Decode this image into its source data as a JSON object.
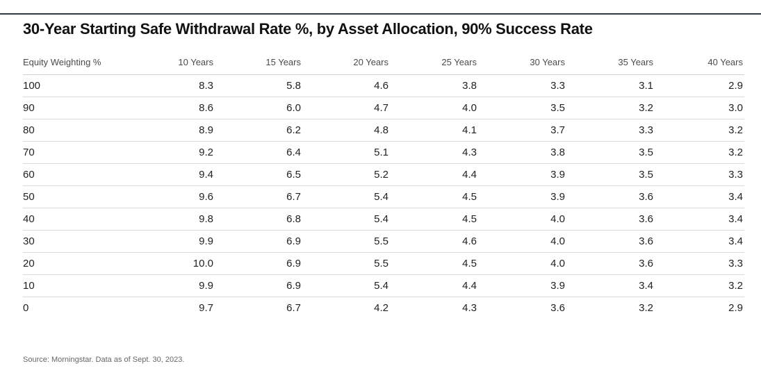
{
  "chart_data": {
    "type": "table",
    "title": "30-Year Starting Safe Withdrawal Rate %, by Asset Allocation, 90% Success Rate",
    "row_header": "Equity Weighting %",
    "columns": [
      "10 Years",
      "15 Years",
      "20 Years",
      "25 Years",
      "30 Years",
      "35 Years",
      "40 Years"
    ],
    "rows": [
      {
        "equity": "100",
        "values": [
          "8.3",
          "5.8",
          "4.6",
          "3.8",
          "3.3",
          "3.1",
          "2.9"
        ]
      },
      {
        "equity": "90",
        "values": [
          "8.6",
          "6.0",
          "4.7",
          "4.0",
          "3.5",
          "3.2",
          "3.0"
        ]
      },
      {
        "equity": "80",
        "values": [
          "8.9",
          "6.2",
          "4.8",
          "4.1",
          "3.7",
          "3.3",
          "3.2"
        ]
      },
      {
        "equity": "70",
        "values": [
          "9.2",
          "6.4",
          "5.1",
          "4.3",
          "3.8",
          "3.5",
          "3.2"
        ]
      },
      {
        "equity": "60",
        "values": [
          "9.4",
          "6.5",
          "5.2",
          "4.4",
          "3.9",
          "3.5",
          "3.3"
        ]
      },
      {
        "equity": "50",
        "values": [
          "9.6",
          "6.7",
          "5.4",
          "4.5",
          "3.9",
          "3.6",
          "3.4"
        ]
      },
      {
        "equity": "40",
        "values": [
          "9.8",
          "6.8",
          "5.4",
          "4.5",
          "4.0",
          "3.6",
          "3.4"
        ]
      },
      {
        "equity": "30",
        "values": [
          "9.9",
          "6.9",
          "5.5",
          "4.6",
          "4.0",
          "3.6",
          "3.4"
        ]
      },
      {
        "equity": "20",
        "values": [
          "10.0",
          "6.9",
          "5.5",
          "4.5",
          "4.0",
          "3.6",
          "3.3"
        ]
      },
      {
        "equity": "10",
        "values": [
          "9.9",
          "6.9",
          "5.4",
          "4.4",
          "3.9",
          "3.4",
          "3.2"
        ]
      },
      {
        "equity": "0",
        "values": [
          "9.7",
          "6.7",
          "4.2",
          "4.3",
          "3.6",
          "3.2",
          "2.9"
        ]
      }
    ],
    "source": "Source: Morningstar. Data as of Sept. 30, 2023."
  },
  "colors": {
    "rule": "#333a44",
    "title": "#111111",
    "header_text": "#4a4a4a",
    "cell_text": "#222222",
    "grid": "#d9d9d9",
    "source_text": "#666666"
  }
}
